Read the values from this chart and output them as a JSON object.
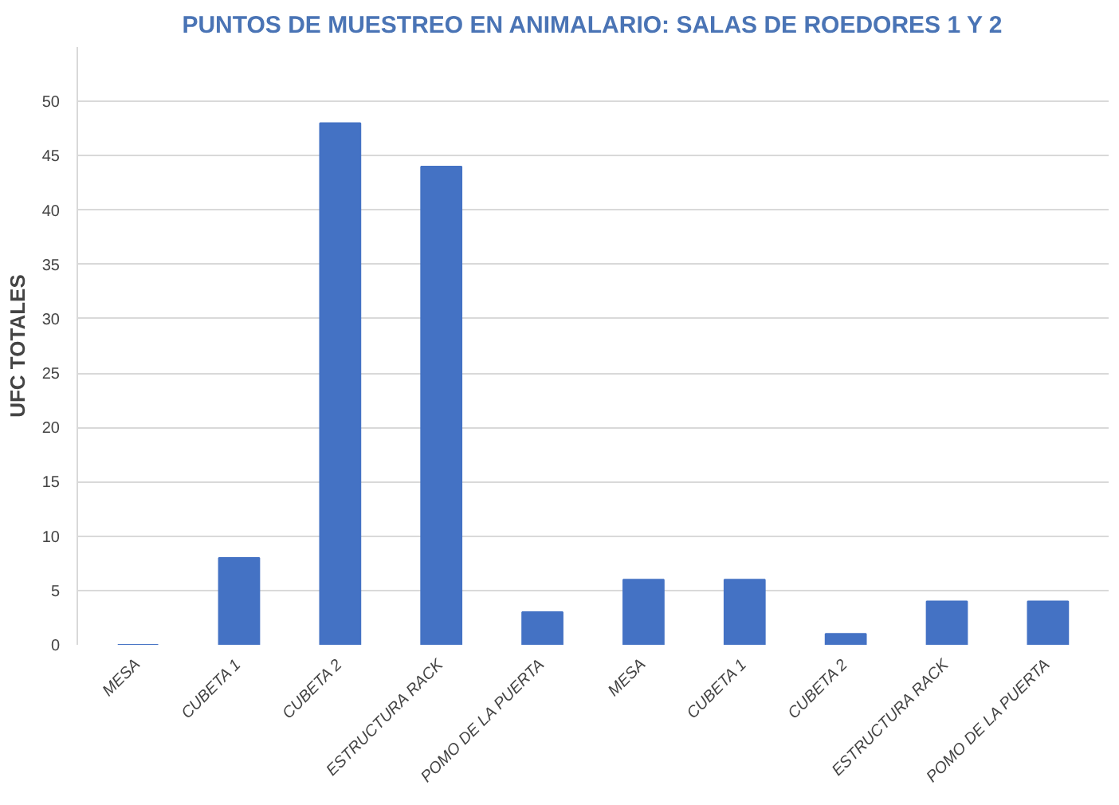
{
  "chart_data": {
    "type": "bar",
    "title": "PUNTOS DE MUESTREO EN ANIMALARIO: SALAS DE ROEDORES 1 Y 2",
    "ylabel": "UFC TOTALES",
    "categories": [
      "MESA",
      "CUBETA 1",
      "CUBETA 2",
      "ESTRUCTURA RACK",
      "POMO DE LA PUERTA",
      "MESA",
      "CUBETA 1",
      "CUBETA 2",
      "ESTRUCTURA RACK",
      "POMO DE LA PUERTA"
    ],
    "values": [
      0,
      8,
      48,
      44,
      3,
      6,
      6,
      1,
      4,
      4
    ],
    "color": "#4472c4",
    "ylim": [
      0,
      55
    ],
    "yticks": [
      0,
      5,
      10,
      15,
      20,
      25,
      30,
      35,
      40,
      45,
      50
    ],
    "grid": "y"
  }
}
